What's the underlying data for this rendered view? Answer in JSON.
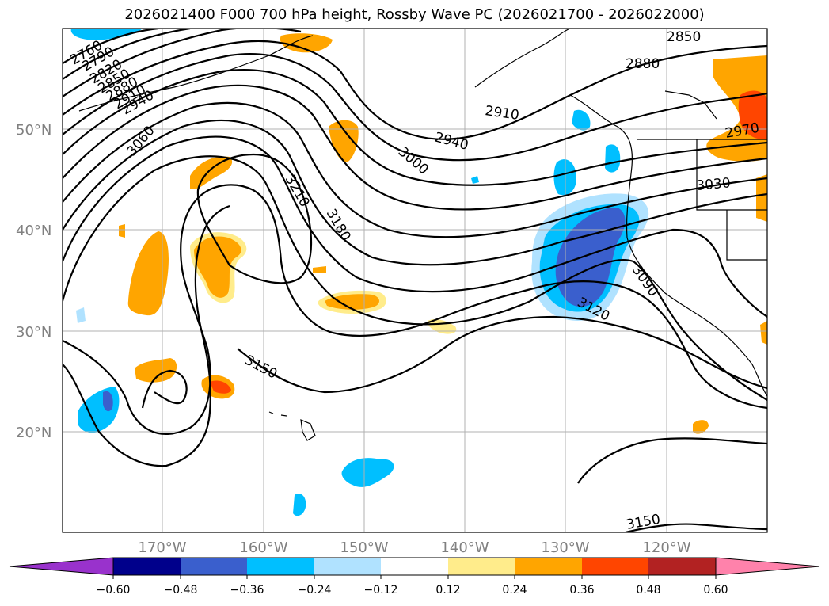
{
  "title": "2026021400 F000 700 hPa height, Rossby Wave PC (2026021700 - 2026022000)",
  "map": {
    "projection": "PlateCarree",
    "lon_range": [
      -180,
      -110
    ],
    "lat_range": [
      10,
      60
    ],
    "lat_labels": [
      "50°N",
      "40°N",
      "30°N",
      "20°N"
    ],
    "lon_labels": [
      "170°W",
      "160°W",
      "150°W",
      "140°W",
      "130°W",
      "120°W"
    ],
    "grid": true,
    "contour_color": "#000000",
    "contour_labels": [
      "2760",
      "2790",
      "2820",
      "2850",
      "2880",
      "2910",
      "2940",
      "2970",
      "3000",
      "3030",
      "3060",
      "3090",
      "3120",
      "3150",
      "3180",
      "3210",
      "2850",
      "2880",
      "2910",
      "2940",
      "2970",
      "3000",
      "3030",
      "3090",
      "3120",
      "3150",
      "3150"
    ]
  },
  "colorbar": {
    "ticks": [
      "−0.60",
      "−0.48",
      "−0.36",
      "−0.24",
      "−0.12",
      "0.12",
      "0.24",
      "0.36",
      "0.48",
      "0.60"
    ],
    "colors": [
      "#9932cc",
      "#00008b",
      "#3a5fcd",
      "#00bfff",
      "#b0e2ff",
      "#ffffff",
      "#ffec8b",
      "#ffa500",
      "#ff4500",
      "#b22222",
      "#ff82ab"
    ]
  }
}
